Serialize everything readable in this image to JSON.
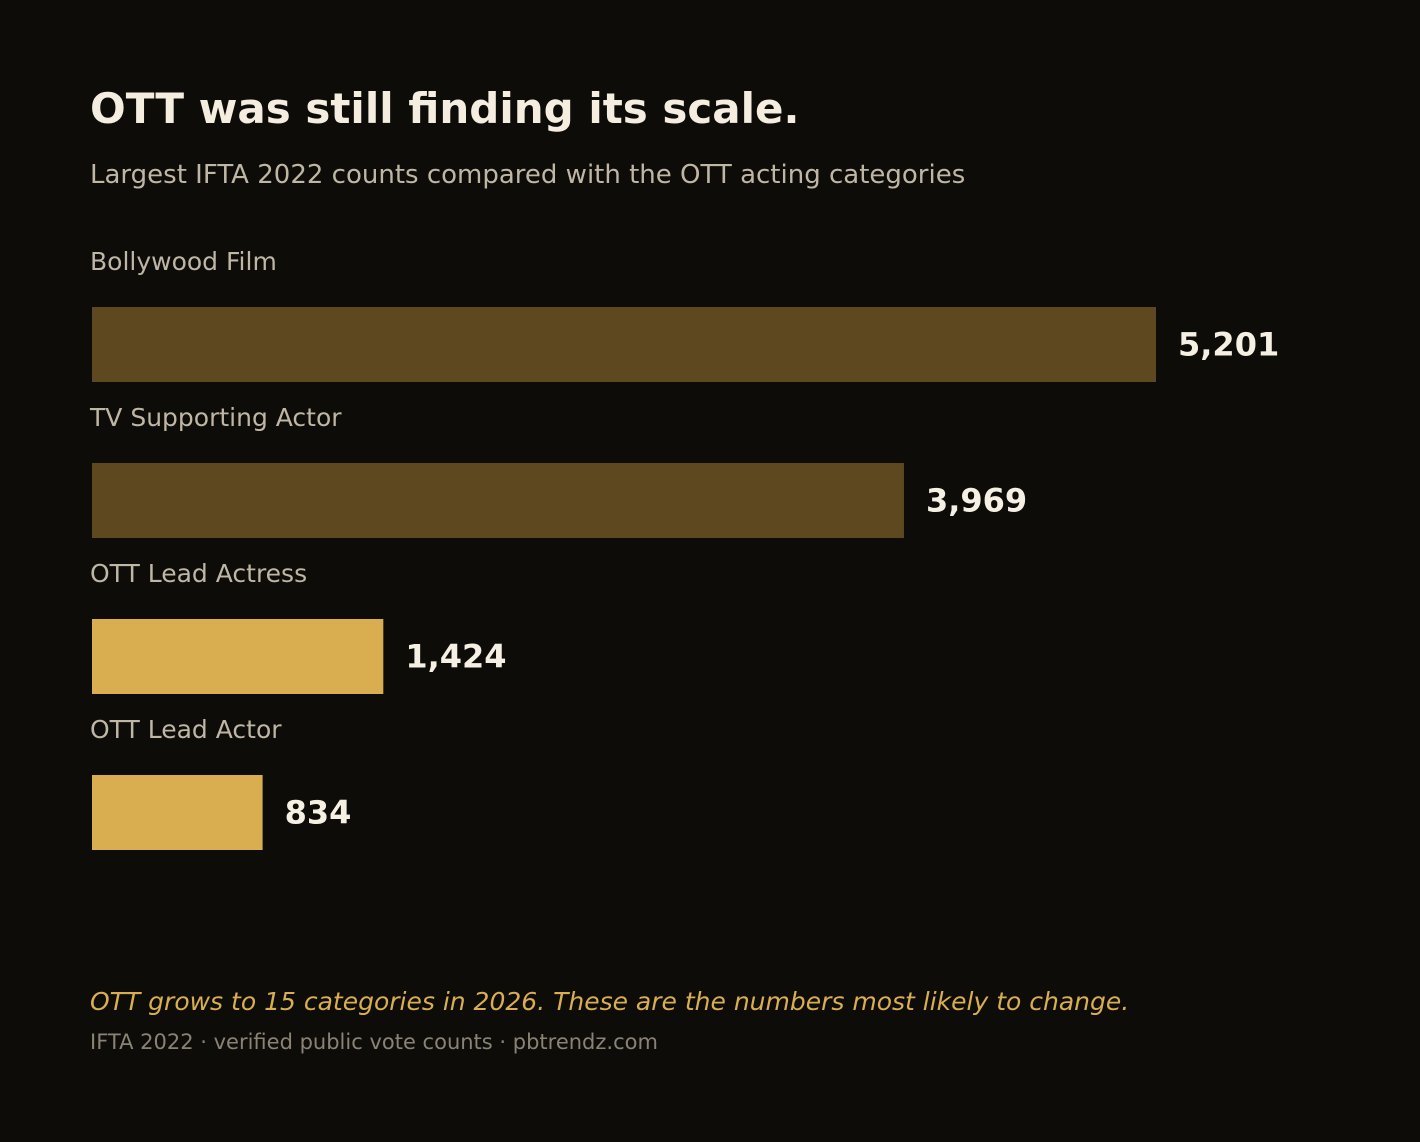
{
  "header": {
    "title": "OTT was still finding its scale.",
    "subtitle": "Largest IFTA 2022 counts compared with the OTT acting categories"
  },
  "footer": {
    "note": "OTT grows to 15 categories in 2026. These are the numbers most likely to change.",
    "source": "IFTA 2022 · verified public vote counts · pbtrendz.com"
  },
  "colors": {
    "background": "#0d0c09",
    "highlight": "#d9ae50",
    "muted": "#5d481f"
  },
  "chart_data": {
    "type": "bar",
    "orientation": "horizontal",
    "title": "OTT was still finding its scale.",
    "subtitle": "Largest IFTA 2022 counts compared with the OTT acting categories",
    "categories": [
      "Bollywood Film",
      "TV Supporting Actor",
      "OTT Lead Actress",
      "OTT Lead Actor"
    ],
    "values": [
      5201,
      3969,
      1424,
      834
    ],
    "value_labels": [
      "5,201",
      "3,969",
      "1,424",
      "834"
    ],
    "highlighted": [
      false,
      false,
      true,
      true
    ],
    "xlim": [
      0,
      5201
    ],
    "grid": false,
    "legend": "none"
  }
}
